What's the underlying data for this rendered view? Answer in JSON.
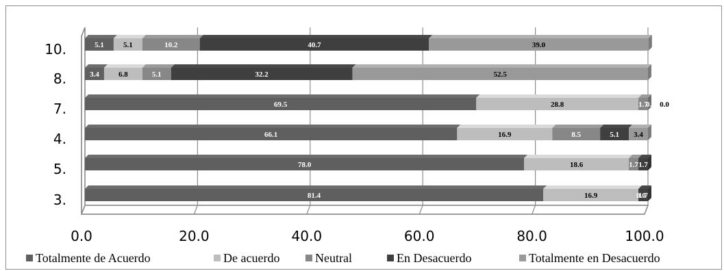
{
  "chart_data": {
    "type": "bar",
    "orientation": "horizontal",
    "stacked": true,
    "title": "",
    "xlabel": "",
    "ylabel": "",
    "xlim": [
      0,
      100
    ],
    "x_ticks": [
      "0.0",
      "20.0",
      "40.0",
      "60.0",
      "80.0",
      "100.0"
    ],
    "grid": true,
    "legend_position": "bottom",
    "categories": [
      "10.",
      "8.",
      "7.",
      "4.",
      "5.",
      "3."
    ],
    "series": [
      {
        "name": "Totalmente de Acuerdo",
        "color": "#5f5f5f",
        "label_color": "#ffffff",
        "values": [
          5.1,
          3.4,
          69.5,
          66.1,
          78.0,
          81.4
        ],
        "labels": [
          "5.1",
          "3.4",
          "69.5",
          "66.1",
          "78.0",
          "81.4"
        ]
      },
      {
        "name": "De acuerdo",
        "color": "#bdbdbd",
        "label_color": "#000000",
        "values": [
          5.1,
          6.8,
          28.8,
          16.9,
          18.6,
          16.9
        ],
        "labels": [
          "5.1",
          "6.8",
          "28.8",
          "16.9",
          "18.6",
          "16.9"
        ]
      },
      {
        "name": "Neutral",
        "color": "#878787",
        "label_color": "#ffffff",
        "values": [
          10.2,
          5.1,
          1.7,
          8.5,
          1.7,
          0.0
        ],
        "labels": [
          "10.2",
          "5.1",
          "1.7",
          "8.5",
          "1.7",
          "0.0"
        ]
      },
      {
        "name": "En Desacuerdo",
        "color": "#3f3f3f",
        "label_color": "#ffffff",
        "values": [
          40.7,
          32.2,
          0.0,
          5.1,
          1.7,
          1.7
        ],
        "labels": [
          "40.7",
          "32.2",
          "0.0",
          "5.1",
          "1.7",
          "1.7"
        ]
      },
      {
        "name": "Totalmente en Desacuerdo",
        "color": "#999999",
        "label_color": "#000000",
        "values": [
          39.0,
          52.5,
          0.0,
          3.4,
          0.0,
          0.0
        ],
        "labels": [
          "39.0",
          "52.5",
          "",
          "3.4",
          "",
          ""
        ]
      }
    ]
  }
}
